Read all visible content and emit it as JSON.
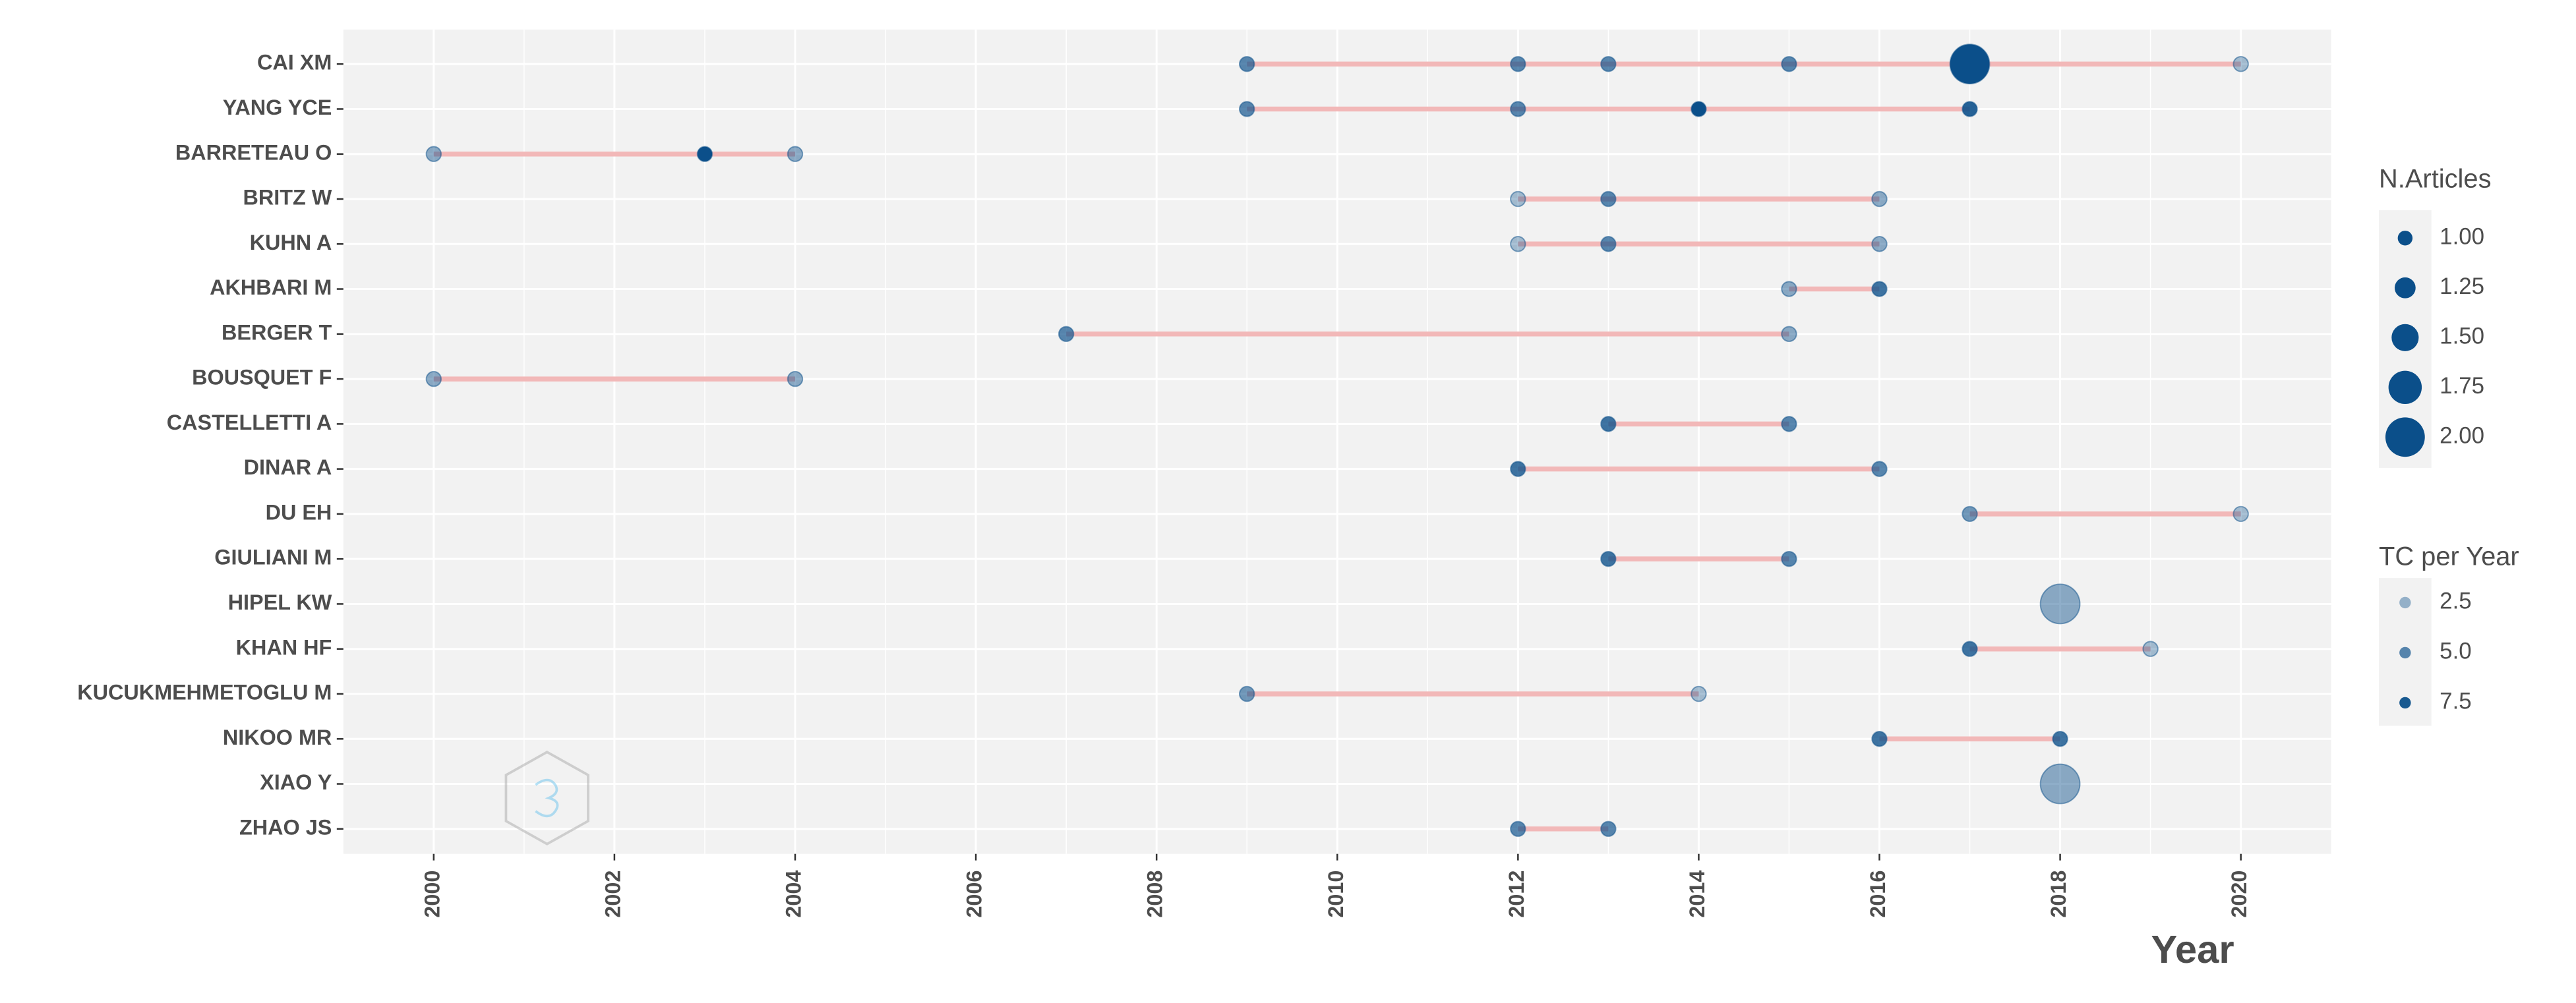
{
  "chart_data": {
    "type": "timeline",
    "x_label": "Year",
    "xlim": [
      1999,
      2021
    ],
    "xticks": [
      2000,
      2002,
      2004,
      2006,
      2008,
      2010,
      2012,
      2014,
      2016,
      2018,
      2020
    ],
    "grid": true,
    "line_color": "#f2b8b8",
    "point_color": "#0b4f8a",
    "size_title": "N.Articles",
    "size_lim": [
      1,
      2
    ],
    "size_ticks": [
      {
        "value": 1,
        "label": "1.00"
      },
      {
        "value": 1.25,
        "label": "1.25"
      },
      {
        "value": 1.5,
        "label": "1.50"
      },
      {
        "value": 1.75,
        "label": "1.75"
      },
      {
        "value": 2,
        "label": "2.00"
      }
    ],
    "alpha_title": "TC per Year",
    "alpha_lim": [
      2,
      8
    ],
    "alpha_ticks": [
      2.5,
      {
        "value": 5,
        "label": "5.0"
      },
      7.5
    ],
    "authors": [
      {
        "name": "CAI XM",
        "years": [
          2009,
          2012,
          2013,
          2015,
          2017,
          2020
        ],
        "articles": [
          1,
          1,
          1,
          1,
          2,
          1
        ],
        "tc_per_year": [
          5,
          5,
          5,
          5,
          8,
          2
        ]
      },
      {
        "name": "YANG YCE",
        "years": [
          2009,
          2012,
          2014,
          2017
        ],
        "articles": [
          1,
          1,
          1,
          1
        ],
        "tc_per_year": [
          5,
          5,
          8,
          7
        ]
      },
      {
        "name": "BARRETEAU O",
        "years": [
          2000,
          2003,
          2004
        ],
        "articles": [
          1,
          1,
          1
        ],
        "tc_per_year": [
          3,
          8,
          3
        ]
      },
      {
        "name": "BRITZ W",
        "years": [
          2012,
          2013,
          2016
        ],
        "articles": [
          1,
          1,
          1
        ],
        "tc_per_year": [
          2,
          5,
          3
        ]
      },
      {
        "name": "KUHN A",
        "years": [
          2012,
          2013,
          2016
        ],
        "articles": [
          1,
          1,
          1
        ],
        "tc_per_year": [
          2,
          5,
          3
        ]
      },
      {
        "name": "AKHBARI M",
        "years": [
          2015,
          2016
        ],
        "articles": [
          1,
          1
        ],
        "tc_per_year": [
          3,
          6
        ]
      },
      {
        "name": "BERGER T",
        "years": [
          2007,
          2015
        ],
        "articles": [
          1,
          1
        ],
        "tc_per_year": [
          5,
          3
        ]
      },
      {
        "name": "BOUSQUET F",
        "years": [
          2000,
          2004
        ],
        "articles": [
          1,
          1
        ],
        "tc_per_year": [
          3,
          3
        ]
      },
      {
        "name": "CASTELLETTI A",
        "years": [
          2013,
          2015
        ],
        "articles": [
          1,
          1
        ],
        "tc_per_year": [
          6,
          5
        ]
      },
      {
        "name": "DINAR A",
        "years": [
          2012,
          2016
        ],
        "articles": [
          1,
          1
        ],
        "tc_per_year": [
          6,
          5
        ]
      },
      {
        "name": "DU EH",
        "years": [
          2017,
          2020
        ],
        "articles": [
          1,
          1
        ],
        "tc_per_year": [
          4,
          2
        ]
      },
      {
        "name": "GIULIANI M",
        "years": [
          2013,
          2015
        ],
        "articles": [
          1,
          1
        ],
        "tc_per_year": [
          6,
          5
        ]
      },
      {
        "name": "HIPEL KW",
        "years": [
          2018
        ],
        "articles": [
          2
        ],
        "tc_per_year": [
          3
        ]
      },
      {
        "name": "KHAN HF",
        "years": [
          2017,
          2019
        ],
        "articles": [
          1,
          1
        ],
        "tc_per_year": [
          6,
          2
        ]
      },
      {
        "name": "KUCUKMEHMETOGLU M",
        "years": [
          2009,
          2014
        ],
        "articles": [
          1,
          1
        ],
        "tc_per_year": [
          4,
          2
        ]
      },
      {
        "name": "NIKOO MR",
        "years": [
          2016,
          2018
        ],
        "articles": [
          1,
          1
        ],
        "tc_per_year": [
          6,
          6
        ]
      },
      {
        "name": "XIAO Y",
        "years": [
          2018
        ],
        "articles": [
          2
        ],
        "tc_per_year": [
          3
        ]
      },
      {
        "name": "ZHAO JS",
        "years": [
          2012,
          2013
        ],
        "articles": [
          1,
          1
        ],
        "tc_per_year": [
          5,
          5
        ]
      }
    ]
  }
}
